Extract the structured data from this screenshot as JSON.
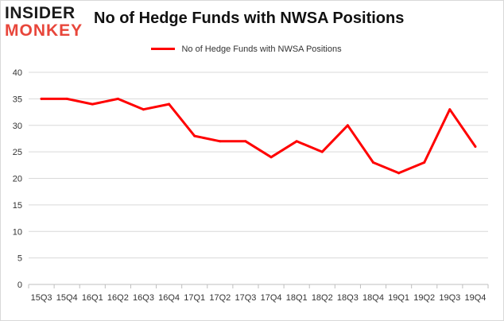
{
  "brand": {
    "logo_top": "INSIDER",
    "logo_bottom": "MONKEY",
    "accent": "#e8463b"
  },
  "chart_data": {
    "type": "line",
    "title": "No of Hedge Funds with NWSA Positions",
    "xlabel": "",
    "ylabel": "",
    "categories": [
      "15Q3",
      "15Q4",
      "16Q1",
      "16Q2",
      "16Q3",
      "16Q4",
      "17Q1",
      "17Q2",
      "17Q3",
      "17Q4",
      "18Q1",
      "18Q2",
      "18Q3",
      "18Q4",
      "19Q1",
      "19Q2",
      "19Q3",
      "19Q4"
    ],
    "series": [
      {
        "name": "No of Hedge Funds with NWSA Positions",
        "color": "#ff0000",
        "values": [
          35,
          35,
          34,
          35,
          33,
          34,
          28,
          27,
          27,
          24,
          27,
          25,
          30,
          23,
          21,
          23,
          33,
          26
        ]
      }
    ],
    "ylim": [
      0,
      40
    ],
    "yticks": [
      0,
      5,
      10,
      15,
      20,
      25,
      30,
      35,
      40
    ],
    "grid": true,
    "legend": "top-center"
  }
}
